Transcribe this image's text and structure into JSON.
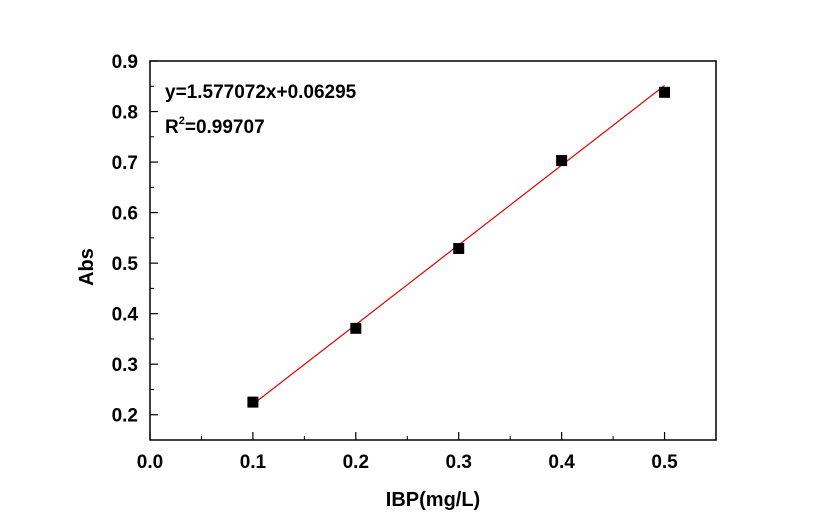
{
  "chart_data": {
    "type": "scatter",
    "xlabel": "IBP(mg/L)",
    "ylabel": "Abs",
    "xlim": [
      0.0,
      0.55
    ],
    "ylim": [
      0.15,
      0.9
    ],
    "xticks": [
      0.0,
      0.1,
      0.2,
      0.3,
      0.4,
      0.5
    ],
    "xtick_labels": [
      "0.0",
      "0.1",
      "0.2",
      "0.3",
      "0.4",
      "0.5"
    ],
    "yticks": [
      0.2,
      0.3,
      0.4,
      0.5,
      0.6,
      0.7,
      0.8,
      0.9
    ],
    "ytick_labels": [
      "0.2",
      "0.3",
      "0.4",
      "0.5",
      "0.6",
      "0.7",
      "0.8",
      "0.9"
    ],
    "grid": false,
    "series": [
      {
        "x": [
          0.1,
          0.2,
          0.3,
          0.4,
          0.5
        ],
        "y": [
          0.225,
          0.371,
          0.529,
          0.703,
          0.838
        ],
        "marker": "square",
        "color": "#000000"
      }
    ],
    "fit_line": {
      "slope": 1.577072,
      "intercept": 0.06295,
      "x_range": [
        0.1,
        0.5
      ],
      "color": "#e00000"
    },
    "annotations": {
      "equation": "y=1.577072x+0.06295",
      "r2_prefix": "R",
      "r2_sup": "2",
      "r2_value": "=0.99707"
    }
  }
}
